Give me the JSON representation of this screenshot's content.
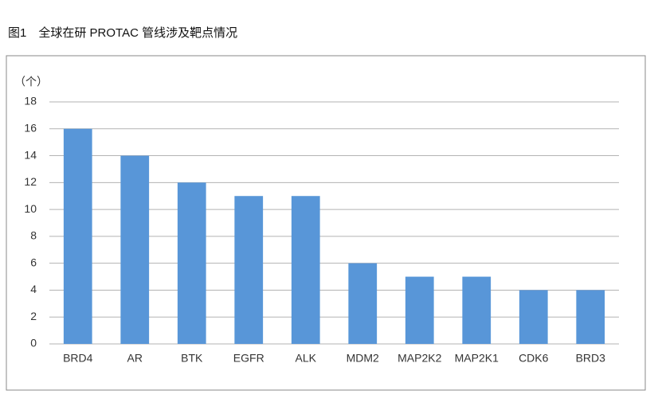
{
  "chart_data": {
    "type": "bar",
    "title": "图1　全球在研 PROTAC 管线涉及靶点情况",
    "y_label": "（个）",
    "categories": [
      "BRD4",
      "AR",
      "BTK",
      "EGFR",
      "ALK",
      "MDM2",
      "MAP2K2",
      "MAP2K1",
      "CDK6",
      "BRD3"
    ],
    "values": [
      16,
      14,
      12,
      11,
      11,
      6,
      5,
      5,
      4,
      4
    ],
    "color": "#5896d8",
    "ylim": [
      0,
      18
    ],
    "yticks": [
      0,
      2,
      4,
      6,
      8,
      10,
      12,
      14,
      16,
      18
    ],
    "grid": true
  }
}
